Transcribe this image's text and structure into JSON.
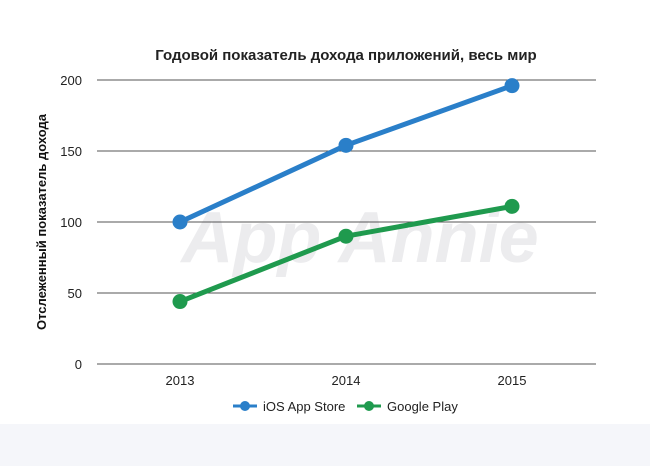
{
  "chart_data": {
    "type": "line",
    "title": "Годовой показатель дохода приложений, весь мир",
    "ylabel": "Отслеженный показатель дохода",
    "xlabel": "",
    "categories": [
      "2013",
      "2014",
      "2015"
    ],
    "ylim": [
      0,
      200
    ],
    "yticks": [
      0,
      50,
      100,
      150,
      200
    ],
    "grid": true,
    "legend_position": "bottom-center",
    "watermark": "App Annie",
    "series": [
      {
        "name": "iOS App Store",
        "color": "#2a7fc9",
        "values": [
          100,
          154,
          196
        ]
      },
      {
        "name": "Google Play",
        "color": "#1f9a4e",
        "values": [
          44,
          90,
          111
        ]
      }
    ]
  }
}
